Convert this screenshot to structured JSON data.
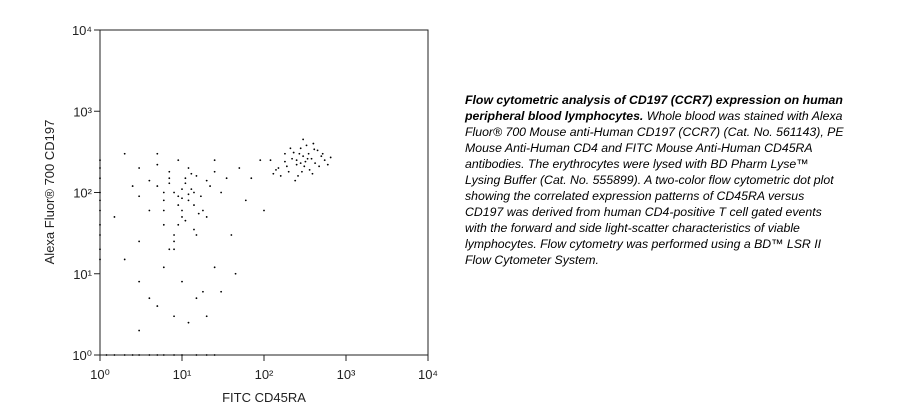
{
  "chart_data": {
    "type": "scatter",
    "x_label": "FITC CD45RA",
    "y_label": "Alexa Fluor® 700 CD197",
    "log_x": true,
    "log_y": true,
    "color": "#000000",
    "xlim": [
      1,
      10000
    ],
    "ylim": [
      1,
      10000
    ],
    "xticks": [
      {
        "value": 1,
        "label": "10⁰"
      },
      {
        "value": 10,
        "label": "10¹"
      },
      {
        "value": 100,
        "label": "10²"
      },
      {
        "value": 1000,
        "label": "10³"
      },
      {
        "value": 10000,
        "label": "10⁴"
      }
    ],
    "yticks": [
      {
        "value": 1,
        "label": "10⁰"
      },
      {
        "value": 10,
        "label": "10¹"
      },
      {
        "value": 100,
        "label": "10²"
      },
      {
        "value": 1000,
        "label": "10³"
      },
      {
        "value": 10000,
        "label": "10⁴"
      }
    ],
    "x": [
      120,
      150,
      180,
      200,
      220,
      250,
      280,
      300,
      320,
      350,
      380,
      400,
      420,
      450,
      500,
      550,
      600,
      650,
      300,
      260,
      230,
      180,
      160,
      140,
      310,
      330,
      270,
      240,
      360,
      410,
      470,
      520,
      210,
      190,
      280,
      340,
      390,
      290,
      250,
      130,
      5,
      6,
      7,
      8,
      9,
      10,
      11,
      12,
      13,
      14,
      15,
      17,
      20,
      25,
      30,
      4,
      3,
      6,
      8,
      10,
      12,
      9,
      7,
      5,
      11,
      14,
      18,
      22,
      8,
      6,
      10,
      13,
      16,
      9,
      7,
      4,
      3,
      12,
      15,
      20,
      25,
      35,
      8,
      10,
      6,
      11,
      9,
      14,
      5,
      7,
      2,
      3,
      2,
      4,
      1.5,
      3,
      25,
      40,
      60,
      30,
      50,
      15,
      20,
      5,
      8,
      70,
      90,
      10,
      12,
      3,
      45,
      100,
      2.5,
      6,
      18,
      1.2,
      1.5,
      2,
      2.5,
      3,
      4,
      5,
      6,
      8,
      10,
      15,
      20,
      25,
      1,
      1,
      1,
      1,
      1,
      1,
      1,
      1,
      1,
      1
    ],
    "y": [
      250,
      200,
      300,
      180,
      260,
      220,
      350,
      280,
      240,
      300,
      260,
      400,
      230,
      330,
      280,
      250,
      220,
      270,
      450,
      160,
      310,
      240,
      160,
      190,
      210,
      380,
      300,
      140,
      190,
      340,
      210,
      300,
      350,
      210,
      230,
      260,
      170,
      180,
      250,
      170,
      120,
      80,
      150,
      100,
      90,
      60,
      130,
      200,
      110,
      70,
      160,
      90,
      140,
      180,
      100,
      60,
      200,
      40,
      30,
      50,
      80,
      250,
      180,
      220,
      45,
      35,
      60,
      120,
      25,
      100,
      110,
      170,
      55,
      70,
      130,
      140,
      90,
      95,
      30,
      50,
      250,
      150,
      20,
      85,
      60,
      150,
      40,
      100,
      300,
      20,
      15,
      8,
      300,
      5,
      50,
      2,
      12,
      30,
      80,
      6,
      200,
      5,
      3,
      4,
      3,
      150,
      250,
      8,
      2.5,
      25,
      10,
      60,
      120,
      12,
      6,
      1,
      1,
      1,
      1,
      1,
      1,
      1,
      1,
      1,
      1,
      1,
      1,
      1,
      15,
      20,
      30,
      40,
      60,
      80,
      100,
      150,
      200,
      250
    ]
  },
  "caption": {
    "title": "Flow cytometric analysis of CD197 (CCR7) expression on human peripheral blood lymphocytes.",
    "text": "Whole blood was stained with Alexa Fluor® 700 Mouse anti-Human CD197 (CCR7) (Cat. No. 561143), PE Mouse Anti-Human CD4 and FITC Mouse Anti-Human CD45RA antibodies. The erythrocytes were lysed with BD Pharm Lyse™ Lysing Buffer (Cat. No. 555899). A two-color flow cytometric dot plot showing the correlated expression patterns of CD45RA versus CD197 was derived from human CD4-positive T cell gated events with the forward and side light-scatter characteristics of viable lymphocytes. Flow cytometry was performed using a BD™ LSR II Flow Cytometer System."
  }
}
